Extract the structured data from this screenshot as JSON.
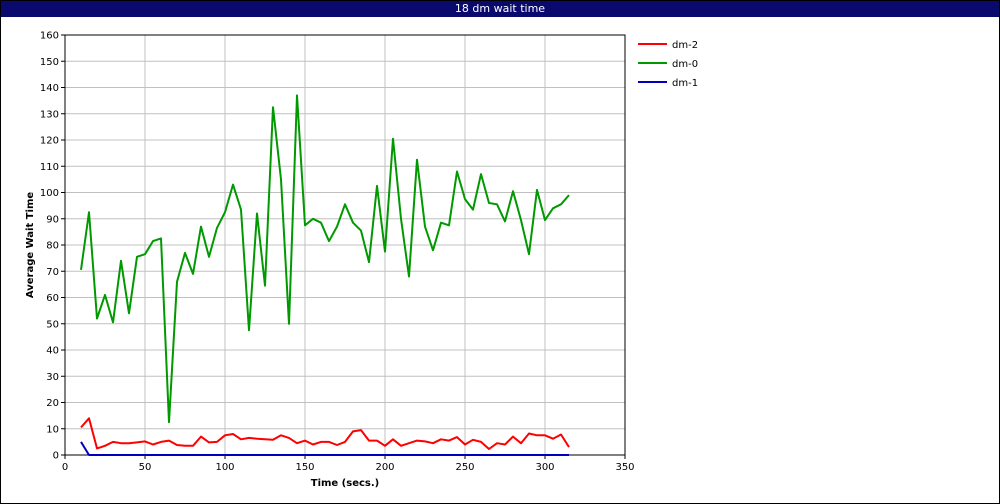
{
  "window": {
    "title": "18 dm wait time"
  },
  "chart_data": {
    "type": "line",
    "title": "18 dm wait time",
    "xlabel": "Time (secs.)",
    "ylabel": "Average Wait Time",
    "xlim": [
      0,
      350
    ],
    "ylim": [
      0,
      160
    ],
    "x_ticks": [
      0,
      50,
      100,
      150,
      200,
      250,
      300,
      350
    ],
    "y_ticks": [
      0,
      10,
      20,
      30,
      40,
      50,
      60,
      70,
      80,
      90,
      100,
      110,
      120,
      130,
      140,
      150,
      160
    ],
    "grid": true,
    "legend_position": "right",
    "series": [
      {
        "name": "dm-2",
        "color": "#ff0000",
        "points": [
          [
            10,
            10.5
          ],
          [
            15,
            14
          ],
          [
            20,
            2.5
          ],
          [
            25,
            3.5
          ],
          [
            30,
            5
          ],
          [
            35,
            4.5
          ],
          [
            40,
            4.5
          ],
          [
            45,
            4.8
          ],
          [
            50,
            5.2
          ],
          [
            55,
            4
          ],
          [
            60,
            5
          ],
          [
            65,
            5.5
          ],
          [
            70,
            3.8
          ],
          [
            75,
            3.5
          ],
          [
            80,
            3.5
          ],
          [
            85,
            7
          ],
          [
            90,
            4.8
          ],
          [
            95,
            5
          ],
          [
            100,
            7.5
          ],
          [
            105,
            8
          ],
          [
            110,
            6
          ],
          [
            115,
            6.5
          ],
          [
            120,
            6.2
          ],
          [
            125,
            6
          ],
          [
            130,
            5.8
          ],
          [
            135,
            7.5
          ],
          [
            140,
            6.5
          ],
          [
            145,
            4.5
          ],
          [
            150,
            5.5
          ],
          [
            155,
            4
          ],
          [
            160,
            5
          ],
          [
            165,
            5
          ],
          [
            170,
            3.8
          ],
          [
            175,
            5
          ],
          [
            180,
            9
          ],
          [
            185,
            9.5
          ],
          [
            190,
            5.5
          ],
          [
            195,
            5.5
          ],
          [
            200,
            3.5
          ],
          [
            205,
            6
          ],
          [
            210,
            3.5
          ],
          [
            215,
            4.5
          ],
          [
            220,
            5.5
          ],
          [
            225,
            5.2
          ],
          [
            230,
            4.5
          ],
          [
            235,
            6
          ],
          [
            240,
            5.5
          ],
          [
            245,
            6.8
          ],
          [
            250,
            4
          ],
          [
            255,
            5.8
          ],
          [
            260,
            5
          ],
          [
            265,
            2.3
          ],
          [
            270,
            4.5
          ],
          [
            275,
            4
          ],
          [
            280,
            7
          ],
          [
            285,
            4.5
          ],
          [
            290,
            8.2
          ],
          [
            295,
            7.5
          ],
          [
            300,
            7.5
          ],
          [
            305,
            6.2
          ],
          [
            310,
            7.8
          ],
          [
            315,
            3
          ]
        ]
      },
      {
        "name": "dm-0",
        "color": "#009900",
        "points": [
          [
            10,
            70.5
          ],
          [
            15,
            92.5
          ],
          [
            20,
            52
          ],
          [
            25,
            61
          ],
          [
            30,
            50.5
          ],
          [
            35,
            74
          ],
          [
            40,
            54
          ],
          [
            45,
            75.5
          ],
          [
            50,
            76.5
          ],
          [
            55,
            81.5
          ],
          [
            60,
            82.5
          ],
          [
            65,
            12.5
          ],
          [
            70,
            66
          ],
          [
            75,
            77
          ],
          [
            80,
            69
          ],
          [
            85,
            87
          ],
          [
            90,
            75.5
          ],
          [
            95,
            86.5
          ],
          [
            100,
            92.5
          ],
          [
            105,
            103
          ],
          [
            110,
            93.5
          ],
          [
            115,
            47.5
          ],
          [
            120,
            92
          ],
          [
            125,
            64.5
          ],
          [
            130,
            132.5
          ],
          [
            135,
            105
          ],
          [
            140,
            50
          ],
          [
            145,
            137
          ],
          [
            150,
            87.5
          ],
          [
            155,
            90
          ],
          [
            160,
            88.5
          ],
          [
            165,
            81.5
          ],
          [
            170,
            87
          ],
          [
            175,
            95.5
          ],
          [
            180,
            88.5
          ],
          [
            185,
            85.5
          ],
          [
            190,
            73.5
          ],
          [
            195,
            102.5
          ],
          [
            200,
            77.5
          ],
          [
            205,
            120.5
          ],
          [
            210,
            90
          ],
          [
            215,
            68
          ],
          [
            220,
            112.5
          ],
          [
            225,
            87
          ],
          [
            230,
            78
          ],
          [
            235,
            88.5
          ],
          [
            240,
            87.5
          ],
          [
            245,
            108
          ],
          [
            250,
            97.5
          ],
          [
            255,
            93.5
          ],
          [
            260,
            107
          ],
          [
            265,
            96
          ],
          [
            270,
            95.5
          ],
          [
            275,
            89
          ],
          [
            280,
            100.5
          ],
          [
            285,
            89.5
          ],
          [
            290,
            76.5
          ],
          [
            295,
            101
          ],
          [
            300,
            89.5
          ],
          [
            305,
            94
          ],
          [
            310,
            95.5
          ],
          [
            315,
            99
          ]
        ]
      },
      {
        "name": "dm-1",
        "color": "#0000bb",
        "points": [
          [
            10,
            5
          ],
          [
            15,
            0
          ],
          [
            20,
            0
          ],
          [
            50,
            0
          ],
          [
            100,
            0
          ],
          [
            150,
            0
          ],
          [
            200,
            0
          ],
          [
            250,
            0
          ],
          [
            300,
            0
          ],
          [
            315,
            0
          ]
        ]
      }
    ]
  }
}
